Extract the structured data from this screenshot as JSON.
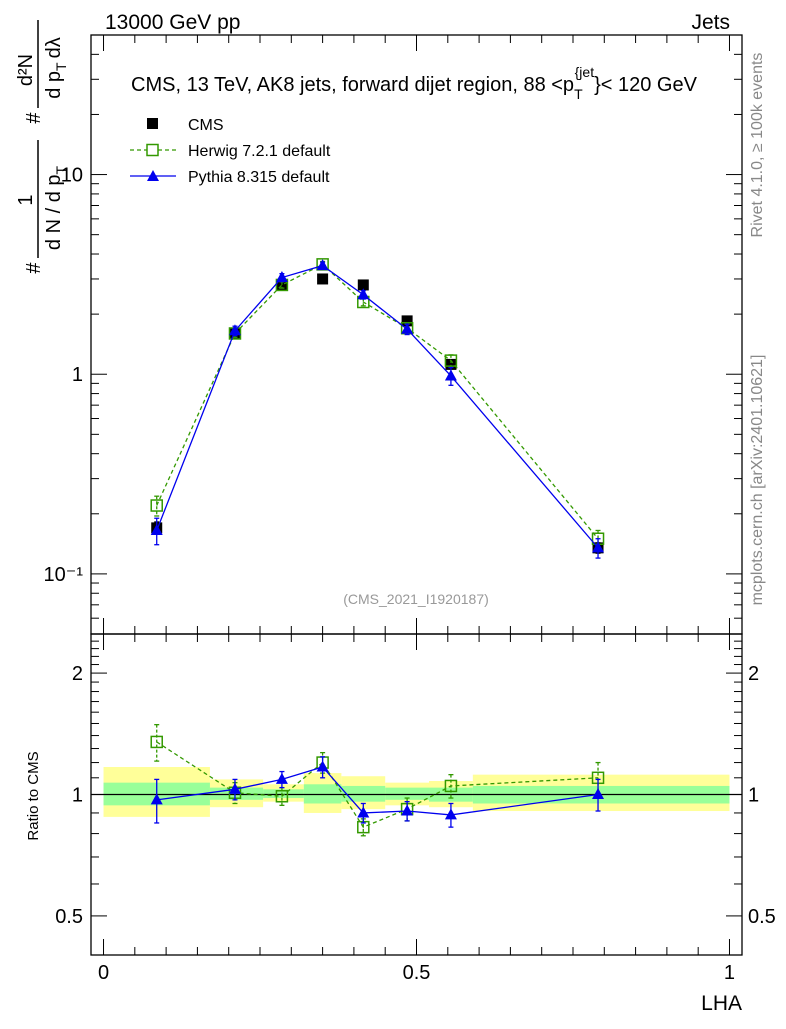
{
  "header": {
    "left": "13000 GeV pp",
    "right": "Jets"
  },
  "side_labels": {
    "rivet": "Rivet 4.1.0, ≥ 100k events",
    "mcplots": "mcplots.cern.ch [arXiv:2401.10621]"
  },
  "colors": {
    "cms": "#000000",
    "herwig": "#339900",
    "pythia": "#0000ee",
    "band_inner": "#99ff99",
    "band_outer": "#ffff99"
  },
  "chart_data": [
    {
      "type": "scatter",
      "title": "CMS, 13 TeV, AK8 jets, forward dijet region, 88 <p_T^{jet}< 120 GeV",
      "title_parts": {
        "prefix": "CMS, 13 TeV, AK8 jets, forward dijet region, 88 <p",
        "sub": "T",
        "sup": "{jet",
        "suffix": "}< 120 GeV"
      },
      "ylabel": "1/(dN/dp_T) d^2N/(dp_T dλ)",
      "ylabel_parts": {
        "numerator": "1",
        "denominator": "d N / d p",
        "sub": "T",
        "hash": "#",
        "num2": "d²N",
        "den2": "d p",
        "den2_sub": "T",
        "den2_tail": "dλ"
      },
      "y_scale": "log",
      "ylim": [
        0.05,
        50
      ],
      "xlim": [
        -0.02,
        1.02
      ],
      "y_ticks": [
        {
          "value": 0.1,
          "label": "10⁻¹"
        },
        {
          "value": 1,
          "label": "1"
        },
        {
          "value": 10,
          "label": "10"
        }
      ],
      "watermark": "(CMS_2021_I1920187)",
      "legend": [
        "CMS",
        "Herwig 7.2.1 default",
        "Pythia 8.315 default"
      ],
      "legend_position": "top-left",
      "series": [
        {
          "name": "CMS",
          "marker": "filled-square",
          "x": [
            0.085,
            0.21,
            0.285,
            0.35,
            0.415,
            0.485,
            0.555,
            0.79
          ],
          "y": [
            0.17,
            1.6,
            2.8,
            3.0,
            2.8,
            1.85,
            1.12,
            0.135
          ],
          "yerr": [
            0.012,
            0.06,
            0.08,
            0.08,
            0.08,
            0.06,
            0.05,
            0.008
          ]
        },
        {
          "name": "Herwig 7.2.1 default",
          "marker": "open-square",
          "line": "dashed",
          "x": [
            0.085,
            0.21,
            0.285,
            0.35,
            0.415,
            0.485,
            0.555,
            0.79
          ],
          "y": [
            0.22,
            1.6,
            2.8,
            3.55,
            2.3,
            1.7,
            1.17,
            0.15
          ],
          "yerr": [
            0.025,
            0.07,
            0.1,
            0.12,
            0.1,
            0.08,
            0.08,
            0.015
          ]
        },
        {
          "name": "Pythia 8.315 default",
          "marker": "filled-triangle",
          "line": "solid",
          "x": [
            0.085,
            0.21,
            0.285,
            0.35,
            0.415,
            0.485,
            0.555,
            0.79
          ],
          "y": [
            0.165,
            1.65,
            3.05,
            3.5,
            2.5,
            1.68,
            0.98,
            0.135
          ],
          "yerr": [
            0.025,
            0.09,
            0.14,
            0.14,
            0.12,
            0.1,
            0.1,
            0.015
          ]
        }
      ]
    },
    {
      "type": "scatter",
      "title": "",
      "xlabel": "LHA",
      "ylabel": "Ratio to CMS",
      "y_scale": "log",
      "ylim": [
        0.4,
        2.5
      ],
      "xlim": [
        -0.02,
        1.02
      ],
      "y_ticks": [
        {
          "value": 0.5,
          "label": "0.5"
        },
        {
          "value": 1,
          "label": "1"
        },
        {
          "value": 2,
          "label": "2"
        }
      ],
      "x_ticks": [
        {
          "value": 0,
          "label": "0"
        },
        {
          "value": 0.5,
          "label": "0.5"
        },
        {
          "value": 1,
          "label": "1"
        }
      ],
      "bands": [
        {
          "x0": 0.0,
          "x1": 0.17,
          "inner": [
            0.94,
            1.07
          ],
          "outer": [
            0.88,
            1.17
          ]
        },
        {
          "x0": 0.17,
          "x1": 0.255,
          "inner": [
            0.97,
            1.04
          ],
          "outer": [
            0.93,
            1.09
          ]
        },
        {
          "x0": 0.255,
          "x1": 0.32,
          "inner": [
            0.98,
            1.03
          ],
          "outer": [
            0.96,
            1.06
          ]
        },
        {
          "x0": 0.32,
          "x1": 0.38,
          "inner": [
            0.95,
            1.06
          ],
          "outer": [
            0.9,
            1.13
          ]
        },
        {
          "x0": 0.38,
          "x1": 0.45,
          "inner": [
            0.96,
            1.05
          ],
          "outer": [
            0.92,
            1.11
          ]
        },
        {
          "x0": 0.45,
          "x1": 0.52,
          "inner": [
            0.97,
            1.04
          ],
          "outer": [
            0.94,
            1.07
          ]
        },
        {
          "x0": 0.52,
          "x1": 0.59,
          "inner": [
            0.96,
            1.04
          ],
          "outer": [
            0.93,
            1.08
          ]
        },
        {
          "x0": 0.59,
          "x1": 1.0,
          "inner": [
            0.95,
            1.05
          ],
          "outer": [
            0.91,
            1.12
          ]
        }
      ],
      "series": [
        {
          "name": "Herwig 7.2.1 default",
          "marker": "open-square",
          "line": "dashed",
          "x": [
            0.085,
            0.21,
            0.285,
            0.35,
            0.415,
            0.485,
            0.555,
            0.79
          ],
          "y": [
            1.35,
            1.01,
            0.99,
            1.2,
            0.83,
            0.92,
            1.05,
            1.1
          ],
          "yerr": [
            0.14,
            0.06,
            0.05,
            0.07,
            0.04,
            0.06,
            0.07,
            0.1
          ]
        },
        {
          "name": "Pythia 8.315 default",
          "marker": "filled-triangle",
          "line": "solid",
          "x": [
            0.085,
            0.21,
            0.285,
            0.35,
            0.415,
            0.485,
            0.555,
            0.79
          ],
          "y": [
            0.97,
            1.03,
            1.09,
            1.17,
            0.9,
            0.91,
            0.89,
            1.0
          ],
          "yerr": [
            0.12,
            0.06,
            0.05,
            0.07,
            0.05,
            0.05,
            0.06,
            0.09
          ]
        }
      ]
    }
  ]
}
